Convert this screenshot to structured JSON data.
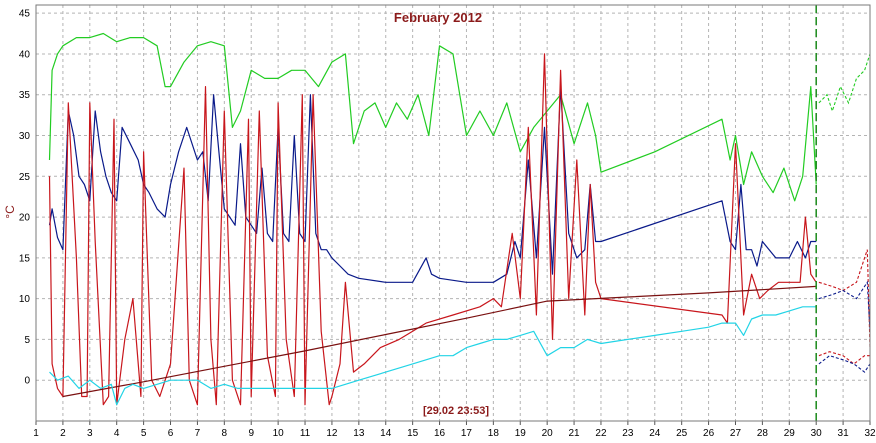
{
  "chart_data": {
    "type": "line",
    "title": "February 2012",
    "ylabel": "°C",
    "xlabel": "",
    "cursor_label": "[29.02 23:53]",
    "xlim": [
      1,
      32
    ],
    "ylim": [
      -5,
      46
    ],
    "x_ticks": [
      1,
      2,
      3,
      4,
      5,
      6,
      7,
      8,
      9,
      10,
      11,
      12,
      13,
      14,
      15,
      16,
      17,
      18,
      19,
      20,
      21,
      22,
      23,
      24,
      25,
      26,
      27,
      28,
      29,
      30,
      31,
      32
    ],
    "y_ticks": [
      0,
      5,
      10,
      15,
      20,
      25,
      30,
      35,
      40,
      45
    ],
    "grid": true,
    "cursor_x": 30.0,
    "colors": {
      "green": "#22cc22",
      "navy": "#0a1a8a",
      "red": "#c8161c",
      "darkred": "#7a1010",
      "cyan": "#22d4e6",
      "title": "#8b1a1a",
      "grid": "#b4b4b4",
      "axis_label": "#8b1a1a"
    },
    "series": [
      {
        "key": "green",
        "x": [
          1.5,
          1.6,
          1.8,
          2.0,
          2.5,
          3.0,
          3.5,
          4.0,
          4.5,
          5.0,
          5.5,
          5.8,
          6.0,
          6.5,
          7.0,
          7.5,
          8.0,
          8.3,
          8.6,
          9.0,
          9.5,
          10.0,
          10.5,
          11.0,
          11.5,
          12.0,
          12.5,
          12.8,
          13.2,
          13.6,
          14.0,
          14.4,
          14.8,
          15.2,
          15.6,
          16.0,
          16.5,
          17.0,
          17.5,
          18.0,
          18.5,
          19.0,
          19.5,
          20.0,
          20.5,
          21.0,
          21.5,
          21.8,
          22.0,
          24.0,
          26.5,
          26.8,
          27.0,
          27.3,
          27.6,
          28.0,
          28.4,
          28.8,
          29.2,
          29.5,
          29.8,
          30.0
        ],
        "y": [
          27,
          38,
          40,
          41,
          42,
          42,
          42.5,
          41.5,
          42,
          42,
          41,
          36,
          36,
          39,
          41,
          41.5,
          41,
          31,
          33,
          38,
          37,
          37,
          38,
          38,
          36,
          39,
          40,
          29,
          33,
          34,
          31,
          34,
          32,
          35,
          30,
          41,
          40,
          30,
          33,
          30,
          34,
          28,
          31,
          33,
          35,
          29,
          34,
          30,
          25.5,
          28,
          32,
          27,
          30,
          24,
          28,
          25,
          23,
          26,
          22,
          25,
          36,
          24
        ]
      },
      {
        "key": "navy",
        "x": [
          1.5,
          1.6,
          1.8,
          2.0,
          2.2,
          2.4,
          2.6,
          2.8,
          3.0,
          3.2,
          3.4,
          3.6,
          3.8,
          4.0,
          4.2,
          4.5,
          4.8,
          5.0,
          5.2,
          5.5,
          5.8,
          6.0,
          6.3,
          6.6,
          7.0,
          7.2,
          7.4,
          7.6,
          7.8,
          8.0,
          8.2,
          8.4,
          8.6,
          8.8,
          9.0,
          9.2,
          9.4,
          9.6,
          9.8,
          10.0,
          10.2,
          10.4,
          10.6,
          10.8,
          11.0,
          11.2,
          11.4,
          11.6,
          11.8,
          12.0,
          12.3,
          12.6,
          13.0,
          14.0,
          15.0,
          15.5,
          15.7,
          16.0,
          17.0,
          18.0,
          18.5,
          18.8,
          19.0,
          19.3,
          19.6,
          19.9,
          20.2,
          20.5,
          20.8,
          21.1,
          21.4,
          21.6,
          21.8,
          22.0,
          26.5,
          26.8,
          27.0,
          27.2,
          27.4,
          27.6,
          27.8,
          28.0,
          28.5,
          29.0,
          29.3,
          29.6,
          29.8,
          30.0
        ],
        "y": [
          19,
          21,
          17.5,
          16,
          33,
          30,
          25,
          24,
          22,
          33,
          28,
          25,
          23,
          22,
          31,
          29,
          27,
          24,
          23,
          21,
          20,
          24,
          28,
          31,
          27,
          28,
          22,
          35,
          28,
          21,
          20,
          19,
          29,
          20,
          19,
          18,
          26,
          18,
          17,
          31,
          18,
          17,
          30,
          18,
          17,
          35,
          18,
          16,
          16,
          15,
          14,
          13,
          12.5,
          12,
          12,
          15,
          13,
          12.5,
          12,
          12,
          13,
          17,
          15,
          27,
          15,
          31,
          13,
          36,
          18,
          15,
          16,
          24,
          17,
          17,
          22,
          17,
          16,
          24,
          16,
          16,
          14,
          17,
          15,
          15,
          17,
          15,
          17,
          17
        ]
      },
      {
        "key": "red",
        "x": [
          1.5,
          1.6,
          1.8,
          2.0,
          2.2,
          2.5,
          2.7,
          2.9,
          3.0,
          3.2,
          3.5,
          3.7,
          3.9,
          4.0,
          4.3,
          4.6,
          4.9,
          5.0,
          5.3,
          5.6,
          6.0,
          6.5,
          6.7,
          7.0,
          7.3,
          7.5,
          7.7,
          8.0,
          8.3,
          8.6,
          8.9,
          9.0,
          9.3,
          9.6,
          9.9,
          10.0,
          10.3,
          10.6,
          10.9,
          11.0,
          11.3,
          11.6,
          11.9,
          12.0,
          12.3,
          12.5,
          12.8,
          13.2,
          13.8,
          14.5,
          15.5,
          16.5,
          17.5,
          18.0,
          18.3,
          18.7,
          19.0,
          19.3,
          19.6,
          19.9,
          20.2,
          20.5,
          20.8,
          21.1,
          21.4,
          21.6,
          21.8,
          22.0,
          26.5,
          26.7,
          27.0,
          27.3,
          27.6,
          27.9,
          28.2,
          28.6,
          29.0,
          29.4,
          29.6,
          29.8,
          30.0
        ],
        "y": [
          25,
          2,
          -1,
          -2,
          34,
          15,
          -2,
          -2,
          34,
          17,
          -3,
          -2,
          32,
          -3,
          5,
          10,
          -2,
          28,
          0,
          -2,
          2,
          26,
          0,
          -3,
          36,
          5,
          -3,
          33,
          0,
          -3,
          32,
          -2,
          33,
          3,
          -2,
          34,
          5,
          -2,
          35,
          -3,
          35,
          6,
          -3,
          -2,
          2,
          12,
          1,
          2,
          4,
          5,
          7,
          8,
          9,
          10,
          9,
          18,
          10,
          31,
          8,
          40,
          5,
          38,
          10,
          27,
          8,
          24,
          12,
          10,
          8,
          7,
          29,
          8,
          13,
          10,
          11,
          12,
          12,
          12,
          20,
          13,
          12
        ]
      },
      {
        "key": "darkred",
        "x": [
          2.0,
          5.0,
          8.0,
          11.0,
          14.0,
          17.0,
          20.0,
          23.0,
          26.0,
          30.0
        ],
        "y": [
          -2,
          -0.2,
          1.7,
          3.6,
          5.6,
          7.6,
          9.7,
          10.2,
          10.7,
          11.5
        ]
      },
      {
        "key": "cyan",
        "x": [
          1.5,
          1.8,
          2.2,
          2.6,
          3.0,
          3.4,
          3.8,
          4.0,
          4.3,
          4.6,
          5.0,
          5.5,
          6.0,
          6.5,
          7.0,
          7.5,
          8.0,
          8.5,
          9.0,
          9.5,
          10.0,
          10.5,
          11.0,
          11.5,
          12.0,
          12.5,
          13.0,
          14.0,
          15.0,
          16.0,
          16.5,
          17.0,
          17.5,
          18.0,
          18.5,
          19.0,
          19.5,
          20.0,
          20.5,
          21.0,
          21.5,
          22.0,
          23.0,
          24.0,
          25.0,
          26.0,
          26.5,
          27.0,
          27.3,
          27.6,
          28.0,
          28.5,
          29.0,
          29.5,
          30.0
        ],
        "y": [
          1,
          0,
          0.5,
          -1,
          0,
          -1,
          -0.5,
          -3,
          -1,
          -0.5,
          -1,
          -0.5,
          0,
          0,
          0,
          -1,
          -0.5,
          -1,
          -1,
          -1,
          -1,
          -1,
          -1,
          -1,
          -1,
          -0.5,
          0,
          1,
          2,
          3,
          3,
          4,
          4.5,
          5,
          5,
          5.5,
          6,
          3,
          4,
          4,
          5,
          4.5,
          5,
          5.5,
          6,
          6.5,
          7,
          7,
          5.5,
          7.5,
          8,
          8,
          8.5,
          9,
          9
        ]
      }
    ],
    "extrapolated": [
      {
        "key": "green",
        "x": [
          30.1,
          30.4,
          30.6,
          30.9,
          31.2,
          31.5,
          31.8,
          32.0
        ],
        "y": [
          34,
          35,
          33,
          36,
          34,
          37,
          38,
          40
        ]
      },
      {
        "key": "red",
        "x": [
          30.1,
          30.6,
          31.0,
          31.5,
          31.9,
          32.0
        ],
        "y": [
          12,
          11.5,
          11,
          12,
          16,
          4
        ]
      },
      {
        "key": "navy",
        "x": [
          30.1,
          30.6,
          31.0,
          31.5,
          31.9,
          32.0
        ],
        "y": [
          10,
          10.5,
          11,
          10,
          12,
          6
        ]
      },
      {
        "key": "red",
        "x": [
          30.1,
          30.5,
          31.0,
          31.4,
          31.8,
          32.0
        ],
        "y": [
          3,
          3.5,
          3,
          2,
          3,
          3
        ]
      },
      {
        "key": "navy",
        "x": [
          30.1,
          30.5,
          31.0,
          31.4,
          31.8,
          32.0
        ],
        "y": [
          2,
          3,
          2.5,
          2,
          1,
          2
        ]
      }
    ]
  }
}
